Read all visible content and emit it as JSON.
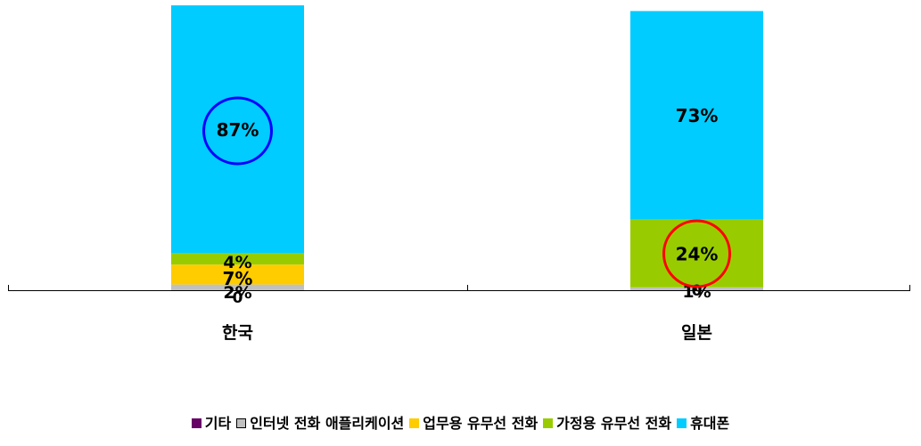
{
  "chart_data": {
    "type": "bar",
    "stacked": true,
    "categories": [
      "한국",
      "일본"
    ],
    "series": [
      {
        "name": "기타",
        "values": [
          0,
          0
        ],
        "color": "#660066",
        "labels": [
          "0",
          ""
        ]
      },
      {
        "name": "인터넷 전화 애플리케이션",
        "values": [
          2,
          1
        ],
        "color": "#c0c0c0",
        "labels": [
          "2%",
          "1%"
        ]
      },
      {
        "name": "업무용 유무선 전화",
        "values": [
          7,
          0
        ],
        "color": "#ffcc00",
        "labels": [
          "7%",
          "0"
        ]
      },
      {
        "name": "가정용 유무선 전화",
        "values": [
          4,
          24
        ],
        "color": "#99cc00",
        "labels": [
          "4%",
          "24%"
        ]
      },
      {
        "name": "휴대폰",
        "values": [
          87,
          73
        ],
        "color": "#00ccff",
        "labels": [
          "87%",
          "73%"
        ]
      }
    ],
    "highlights": [
      {
        "category": "한국",
        "series": "휴대폰",
        "color": "#0000ff"
      },
      {
        "category": "일본",
        "series": "가정용 유무선 전화",
        "color": "#ff0000"
      }
    ],
    "ylim": [
      0,
      100
    ],
    "grid": false,
    "legend": "bottom",
    "title": "",
    "xlabel": "",
    "ylabel": ""
  }
}
